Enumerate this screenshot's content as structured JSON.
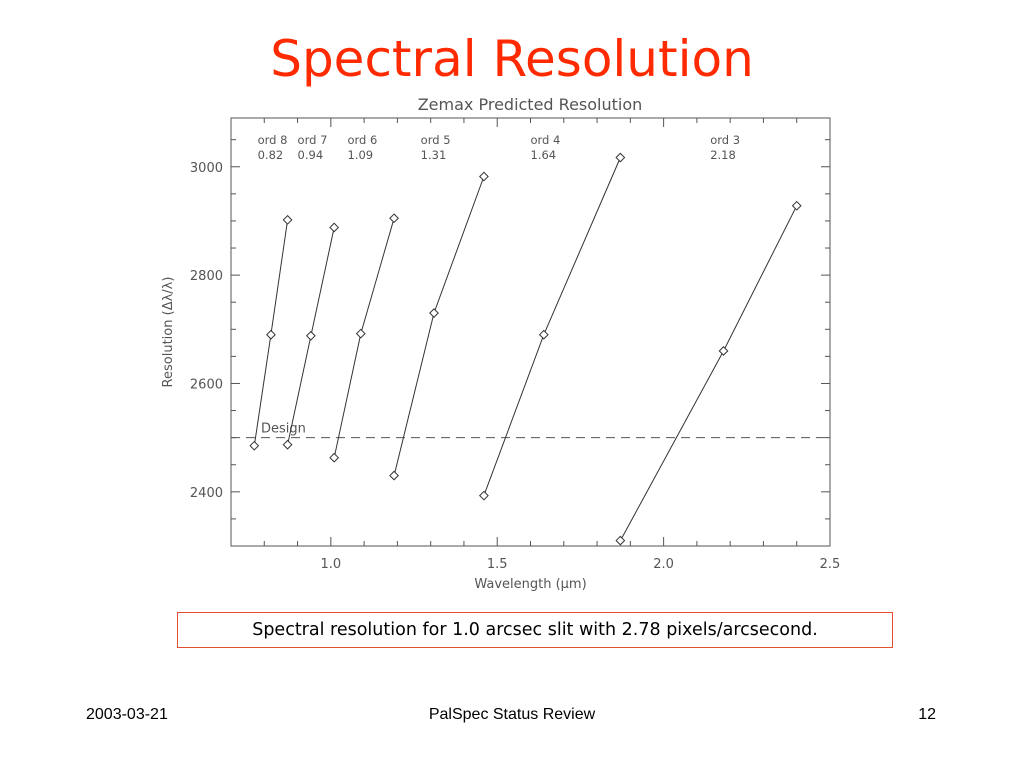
{
  "slide": {
    "title": "Spectral Resolution",
    "caption": "Spectral resolution for 1.0 arcsec slit with 2.78 pixels/arcsecond.",
    "footer_date": "2003-03-21",
    "footer_center": "PalSpec Status Review",
    "page_number": "12"
  },
  "colors": {
    "title": "#ff2a00",
    "caption_border": "#e05030",
    "axis": "#555555",
    "line": "#333333"
  },
  "chart_data": {
    "type": "line",
    "title": "Zemax Predicted Resolution",
    "xlabel": "Wavelength (μm)",
    "ylabel": "Resolution (Δλ/λ)",
    "xlim": [
      0.7,
      2.5
    ],
    "ylim": [
      2300,
      3090
    ],
    "x_ticks": [
      1.0,
      1.5,
      2.0,
      2.5
    ],
    "x_tick_labels": [
      "1.0",
      "1.5",
      "2.0",
      "2.5"
    ],
    "y_ticks": [
      2400,
      2600,
      2800,
      3000
    ],
    "y_tick_labels": [
      "2400",
      "2600",
      "2800",
      "3000"
    ],
    "grid": false,
    "reference_line": {
      "label": "Design",
      "y": 2500,
      "style": "dashed"
    },
    "order_labels": [
      {
        "order": "ord 8",
        "wavelength": "0.82",
        "x": 0.78
      },
      {
        "order": "ord 7",
        "wavelength": "0.94",
        "x": 0.9
      },
      {
        "order": "ord 6",
        "wavelength": "1.09",
        "x": 1.05
      },
      {
        "order": "ord 5",
        "wavelength": "1.31",
        "x": 1.27
      },
      {
        "order": "ord 4",
        "wavelength": "1.64",
        "x": 1.6
      },
      {
        "order": "ord 3",
        "wavelength": "2.18",
        "x": 2.14
      }
    ],
    "series": [
      {
        "order": "ord 8",
        "x": [
          0.77,
          0.82,
          0.87
        ],
        "y": [
          2485,
          2690,
          2902
        ]
      },
      {
        "order": "ord 7",
        "x": [
          0.87,
          0.94,
          1.01
        ],
        "y": [
          2487,
          2688,
          2888
        ]
      },
      {
        "order": "ord 6",
        "x": [
          1.01,
          1.09,
          1.19
        ],
        "y": [
          2463,
          2692,
          2905
        ]
      },
      {
        "order": "ord 5",
        "x": [
          1.19,
          1.31,
          1.46
        ],
        "y": [
          2430,
          2730,
          2982
        ]
      },
      {
        "order": "ord 4",
        "x": [
          1.46,
          1.64,
          1.87
        ],
        "y": [
          2393,
          2690,
          3017
        ]
      },
      {
        "order": "ord 3",
        "x": [
          1.87,
          2.18,
          2.4
        ],
        "y": [
          2310,
          2660,
          2928
        ]
      }
    ]
  }
}
